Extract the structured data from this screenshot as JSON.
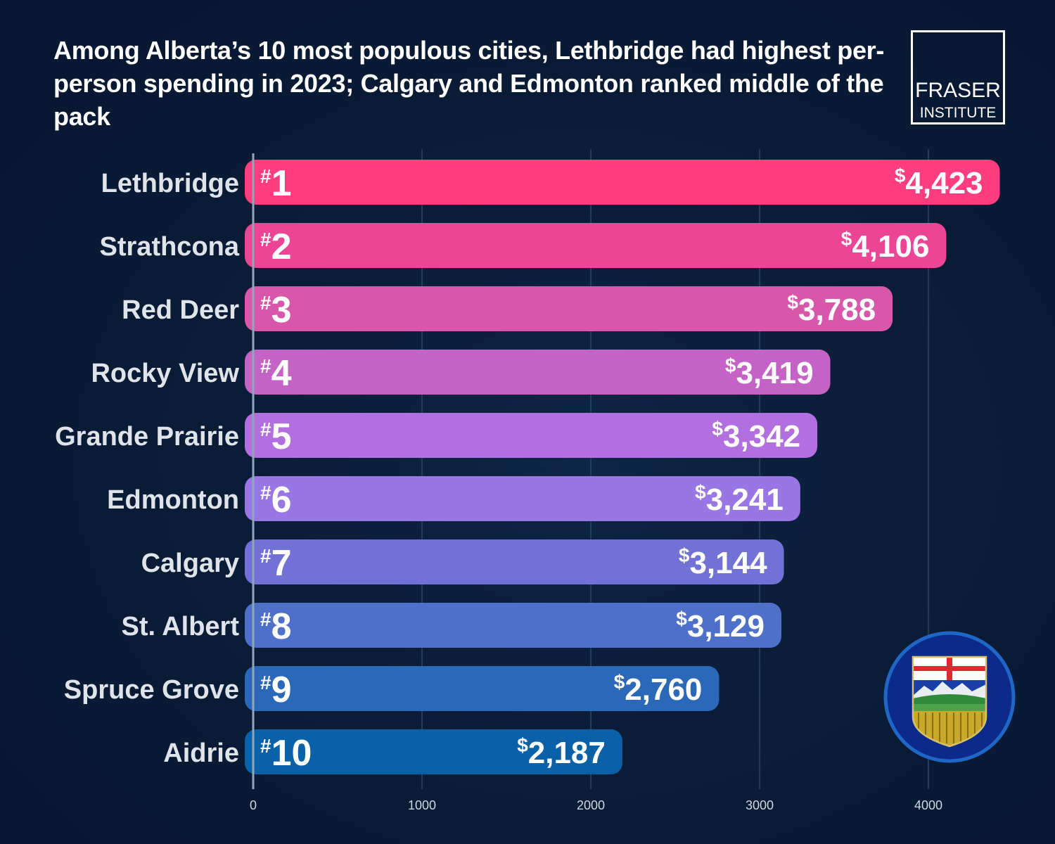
{
  "title": "Among Alberta’s 10 most populous cities, Lethbridge had highest per-person spending in 2023; Calgary and Edmonton ranked middle of the pack",
  "logo": {
    "line1": "FRASER",
    "line2": "INSTITUTE"
  },
  "colors": {
    "background": "#0a1c36",
    "bars": [
      "#ff3d7f",
      "#ec4595",
      "#d957ab",
      "#c562c6",
      "#b26fdf",
      "#9877e4",
      "#7272d6",
      "#4f70c9",
      "#2c68b8",
      "#0b61a8"
    ]
  },
  "chart_data": {
    "type": "bar",
    "orientation": "horizontal",
    "title": "Among Alberta’s 10 most populous cities, Lethbridge had highest per-person spending in 2023; Calgary and Edmonton ranked middle of the pack",
    "categories": [
      "Lethbridge",
      "Strathcona",
      "Red Deer",
      "Rocky View",
      "Grande Prairie",
      "Edmonton",
      "Calgary",
      "St. Albert",
      "Spruce Grove",
      "Aidrie"
    ],
    "ranks": [
      "1",
      "2",
      "3",
      "4",
      "5",
      "6",
      "7",
      "8",
      "9",
      "10"
    ],
    "rank_prefix": "#",
    "values": [
      4423,
      4106,
      3788,
      3419,
      3342,
      3241,
      3144,
      3129,
      2760,
      2187
    ],
    "value_labels": [
      "4,423",
      "4,106",
      "3,788",
      "3,419",
      "3,342",
      "3,241",
      "3,144",
      "3,129",
      "2,760",
      "2,187"
    ],
    "value_prefix": "$",
    "xlim": [
      0,
      4500
    ],
    "xticks": [
      0,
      1000,
      2000,
      3000,
      4000
    ],
    "xtick_labels": [
      "0",
      "1000",
      "2000",
      "3000",
      "4000"
    ],
    "xlabel": "",
    "ylabel": "",
    "grid": true
  },
  "crest": {
    "icon": "alberta-coat-of-arms-icon"
  }
}
